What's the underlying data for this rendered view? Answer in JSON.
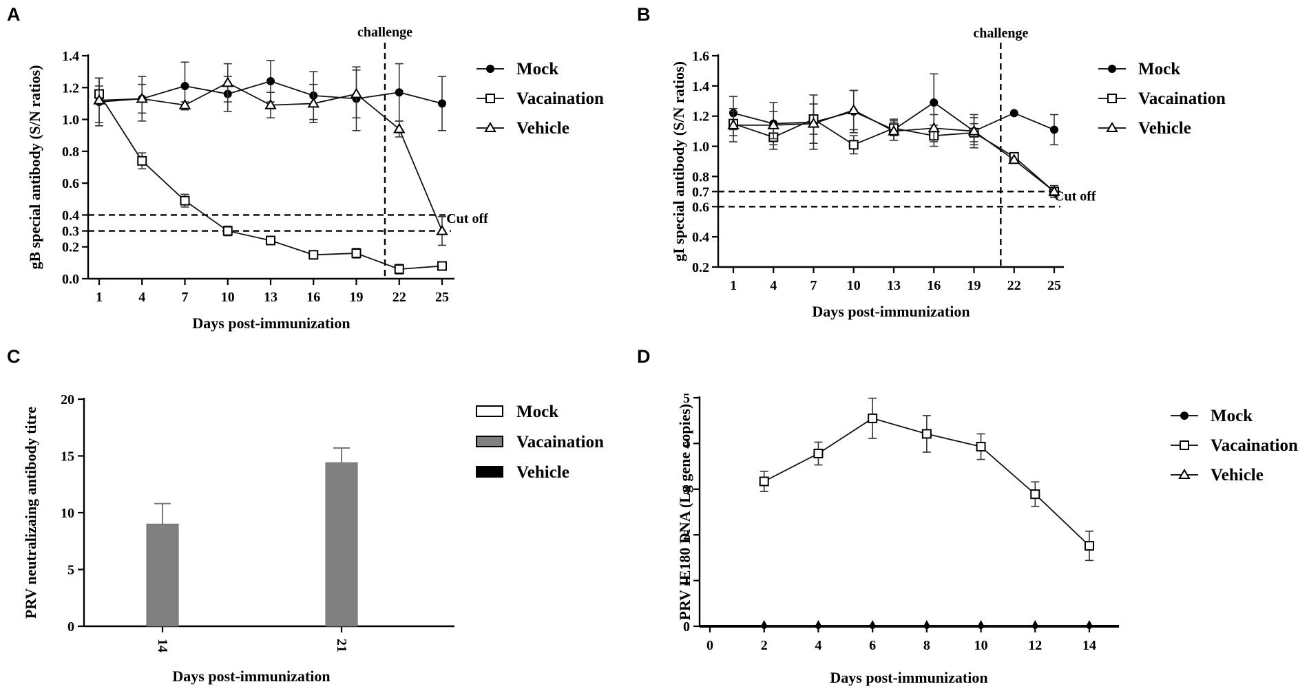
{
  "figure": {
    "background": "#ffffff"
  },
  "chart_data": [
    {
      "panel": "A",
      "type": "line",
      "xlabel": "Days post-immunization",
      "ylabel": "gB special antibody (S/N ratios)",
      "x": [
        1,
        4,
        7,
        10,
        13,
        16,
        19,
        22,
        25
      ],
      "xticks": [
        "1",
        "4",
        "7",
        "10",
        "13",
        "16",
        "19",
        "22",
        "25"
      ],
      "yticks": [
        "0.0",
        "0.2",
        "0.3",
        "0.4",
        "0.6",
        "0.8",
        "1.0",
        "1.2",
        "1.4"
      ],
      "ylim": [
        0,
        1.4
      ],
      "legend_position": "right",
      "series": [
        {
          "name": "Mock",
          "marker": "circle",
          "values": [
            1.11,
            1.13,
            1.21,
            1.16,
            1.24,
            1.15,
            1.13,
            1.17,
            1.1
          ],
          "errors": [
            0.15,
            0.14,
            0.15,
            0.11,
            0.13,
            0.15,
            0.2,
            0.18,
            0.17
          ]
        },
        {
          "name": "Vacaination",
          "marker": "square",
          "values": [
            1.16,
            0.74,
            0.49,
            0.3,
            0.24,
            0.15,
            0.16,
            0.06,
            0.08
          ],
          "errors": [
            0.05,
            0.05,
            0.04,
            0.03,
            0.02,
            0.015,
            0.03,
            0.03,
            0.015
          ]
        },
        {
          "name": "Vehicle",
          "marker": "triangle",
          "values": [
            1.12,
            1.13,
            1.09,
            1.23,
            1.09,
            1.1,
            1.16,
            0.94,
            0.3
          ],
          "errors": [
            0.14,
            0.09,
            0.02,
            0.12,
            0.08,
            0.12,
            0.15,
            0.05,
            0.09
          ]
        }
      ],
      "reference_lines": [
        {
          "axis": "y",
          "value": 0.4
        },
        {
          "axis": "y",
          "value": 0.3
        },
        {
          "axis": "x",
          "value": 21
        }
      ],
      "annotations": [
        {
          "text": "challenge",
          "x": 21,
          "y": 1.52
        },
        {
          "text": "Cut off",
          "x": 25.3,
          "y": 0.35
        }
      ]
    },
    {
      "panel": "B",
      "type": "line",
      "xlabel": "Days post-immunization",
      "ylabel": "gI special antibody (S/N ratios)",
      "x": [
        1,
        4,
        7,
        10,
        13,
        16,
        19,
        22,
        25
      ],
      "xticks": [
        "1",
        "4",
        "7",
        "10",
        "13",
        "16",
        "19",
        "22",
        "25"
      ],
      "yticks": [
        "0.2",
        "0.4",
        "0.6",
        "0.7",
        "0.8",
        "1.0",
        "1.2",
        "1.4",
        "1.6"
      ],
      "ylim": [
        0.2,
        1.6
      ],
      "legend_position": "right",
      "series": [
        {
          "name": "Mock",
          "marker": "circle",
          "values": [
            1.22,
            1.15,
            1.16,
            1.23,
            1.11,
            1.29,
            1.1,
            1.22,
            1.11
          ],
          "errors": [
            0.11,
            0.14,
            0.18,
            0.14,
            0.07,
            0.19,
            0.11,
            0.0,
            0.1
          ]
        },
        {
          "name": "Vacaination",
          "marker": "square",
          "values": [
            1.15,
            1.06,
            1.18,
            1.01,
            1.12,
            1.07,
            1.09,
            0.93,
            0.7
          ],
          "errors": [
            0.08,
            0.08,
            0.1,
            0.06,
            0.05,
            0.07,
            0.06,
            0.0,
            0.0
          ]
        },
        {
          "name": "Vehicle",
          "marker": "triangle",
          "values": [
            1.14,
            1.14,
            1.15,
            1.24,
            1.1,
            1.12,
            1.1,
            0.91,
            0.7
          ],
          "errors": [
            0.11,
            0.09,
            0.13,
            0.13,
            0.06,
            0.09,
            0.09,
            0.0,
            0.04
          ]
        }
      ],
      "reference_lines": [
        {
          "axis": "y",
          "value": 0.7
        },
        {
          "axis": "y",
          "value": 0.6
        },
        {
          "axis": "x",
          "value": 21
        }
      ],
      "annotations": [
        {
          "text": "challenge",
          "x": 21,
          "y": 1.72
        },
        {
          "text": "Cut off",
          "x": 25,
          "y": 0.64
        }
      ]
    },
    {
      "panel": "C",
      "type": "bar",
      "xlabel": "Days post-immunization",
      "ylabel": "PRV neutralizaing antibody titre",
      "categories": [
        "14",
        "21"
      ],
      "yticks": [
        "0",
        "5",
        "10",
        "15",
        "20"
      ],
      "ylim": [
        0,
        20
      ],
      "legend_position": "right",
      "series": [
        {
          "name": "Mock",
          "color": "#ffffff",
          "values": [
            0,
            0
          ],
          "errors": [
            0,
            0
          ]
        },
        {
          "name": "Vacaination",
          "color": "#808080",
          "values": [
            9.0,
            14.4
          ],
          "errors": [
            1.8,
            1.3
          ]
        },
        {
          "name": "Vehicle",
          "color": "#000000",
          "values": [
            0,
            0
          ],
          "errors": [
            0,
            0
          ]
        }
      ]
    },
    {
      "panel": "D",
      "type": "line",
      "xlabel": "Days post-immunization",
      "ylabel": "PRV IE180 DNA (Lg gene copies)",
      "x": [
        2,
        4,
        6,
        8,
        10,
        12,
        14
      ],
      "xticks": [
        "0",
        "2",
        "4",
        "6",
        "8",
        "10",
        "12",
        "14"
      ],
      "xlim": [
        0,
        15
      ],
      "yticks": [
        "0",
        "1",
        "2",
        "3",
        "4",
        "5"
      ],
      "ylim": [
        0,
        5
      ],
      "legend_position": "right",
      "series": [
        {
          "name": "Mock",
          "marker": "circle",
          "values": [
            0,
            0,
            0,
            0,
            0,
            0,
            0
          ],
          "errors": [
            0,
            0,
            0,
            0,
            0,
            0,
            0
          ]
        },
        {
          "name": "Vacaination",
          "marker": "square",
          "values": [
            3.17,
            3.78,
            4.55,
            4.21,
            3.93,
            2.89,
            1.76
          ],
          "errors": [
            0.22,
            0.25,
            0.44,
            0.4,
            0.28,
            0.27,
            0.32
          ]
        },
        {
          "name": "Vehicle",
          "marker": "triangle",
          "values": [
            0,
            0,
            0,
            0,
            0,
            0,
            0
          ],
          "errors": [
            0,
            0,
            0,
            0,
            0,
            0,
            0
          ]
        }
      ]
    }
  ]
}
